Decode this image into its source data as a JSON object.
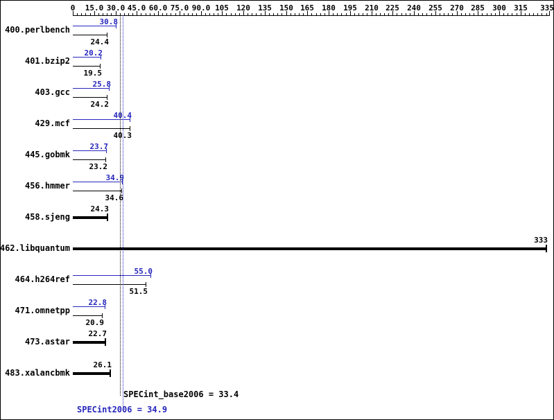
{
  "chart_data": {
    "type": "bar",
    "orientation": "horizontal",
    "title": "",
    "x_axis": {
      "min": 0,
      "max": 335,
      "minor_tick_step": 3,
      "ticks": [
        {
          "value": 0,
          "label": "0"
        },
        {
          "value": 15,
          "label": "15.0"
        },
        {
          "value": 30,
          "label": "30.0"
        },
        {
          "value": 45,
          "label": "45.0"
        },
        {
          "value": 60,
          "label": "60.0"
        },
        {
          "value": 75,
          "label": "75.0"
        },
        {
          "value": 90,
          "label": "90.0"
        },
        {
          "value": 105,
          "label": "105"
        },
        {
          "value": 120,
          "label": "120"
        },
        {
          "value": 135,
          "label": "135"
        },
        {
          "value": 150,
          "label": "150"
        },
        {
          "value": 165,
          "label": "165"
        },
        {
          "value": 180,
          "label": "180"
        },
        {
          "value": 195,
          "label": "195"
        },
        {
          "value": 210,
          "label": "210"
        },
        {
          "value": 225,
          "label": "225"
        },
        {
          "value": 240,
          "label": "240"
        },
        {
          "value": 255,
          "label": "255"
        },
        {
          "value": 270,
          "label": "270"
        },
        {
          "value": 285,
          "label": "285"
        },
        {
          "value": 300,
          "label": "300"
        },
        {
          "value": 315,
          "label": "315"
        },
        {
          "value": 335,
          "label": "335"
        }
      ]
    },
    "categories": [
      "400.perlbench",
      "401.bzip2",
      "403.gcc",
      "429.mcf",
      "445.gobmk",
      "456.hmmer",
      "458.sjeng",
      "462.libquantum",
      "464.h264ref",
      "471.omnetpp",
      "473.astar",
      "483.xalancbmk"
    ],
    "series": [
      {
        "name": "peak",
        "color": "#2626bd",
        "values": [
          30.8,
          20.2,
          25.8,
          40.4,
          23.7,
          34.9,
          null,
          null,
          55.0,
          22.8,
          null,
          null
        ],
        "labels": [
          "30.8",
          "20.2",
          "25.8",
          "40.4",
          "23.7",
          "34.9",
          null,
          null,
          "55.0",
          "22.8",
          null,
          null
        ]
      },
      {
        "name": "base",
        "color": "#000000",
        "values": [
          24.4,
          19.5,
          24.2,
          40.3,
          23.2,
          34.6,
          24.3,
          333,
          51.5,
          20.9,
          22.7,
          26.1
        ],
        "labels": [
          "24.4",
          "19.5",
          "24.2",
          "40.3",
          "23.2",
          "34.6",
          "24.3",
          "333",
          "51.5",
          "20.9",
          "22.7",
          "26.1"
        ]
      }
    ],
    "reference_lines": [
      {
        "name": "base-mean",
        "value": 33.4,
        "label": "SPECint_base2006 = 33.4",
        "color": "#000000"
      },
      {
        "name": "peak-mean",
        "value": 34.9,
        "label": "SPECint2006 = 34.9",
        "color": "#2626bd"
      }
    ]
  }
}
